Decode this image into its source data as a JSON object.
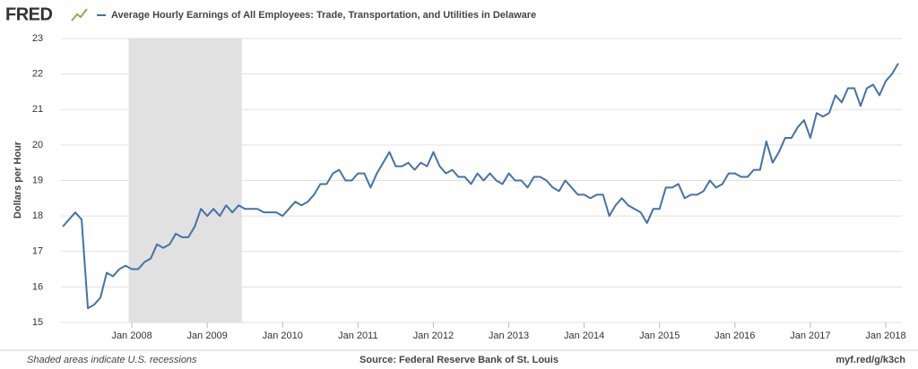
{
  "logo": "FRED",
  "chart_data": {
    "type": "line",
    "y_label": "Dollars per Hour",
    "x": [
      "2007-02",
      "2007-03",
      "2007-04",
      "2007-05",
      "2007-06",
      "2007-07",
      "2007-08",
      "2007-09",
      "2007-10",
      "2007-11",
      "2007-12",
      "2008-01",
      "2008-02",
      "2008-03",
      "2008-04",
      "2008-05",
      "2008-06",
      "2008-07",
      "2008-08",
      "2008-09",
      "2008-10",
      "2008-11",
      "2008-12",
      "2009-01",
      "2009-02",
      "2009-03",
      "2009-04",
      "2009-05",
      "2009-06",
      "2009-07",
      "2009-08",
      "2009-09",
      "2009-10",
      "2009-11",
      "2009-12",
      "2010-01",
      "2010-02",
      "2010-03",
      "2010-04",
      "2010-05",
      "2010-06",
      "2010-07",
      "2010-08",
      "2010-09",
      "2010-10",
      "2010-11",
      "2010-12",
      "2011-01",
      "2011-02",
      "2011-03",
      "2011-04",
      "2011-05",
      "2011-06",
      "2011-07",
      "2011-08",
      "2011-09",
      "2011-10",
      "2011-11",
      "2011-12",
      "2012-01",
      "2012-02",
      "2012-03",
      "2012-04",
      "2012-05",
      "2012-06",
      "2012-07",
      "2012-08",
      "2012-09",
      "2012-10",
      "2012-11",
      "2012-12",
      "2013-01",
      "2013-02",
      "2013-03",
      "2013-04",
      "2013-05",
      "2013-06",
      "2013-07",
      "2013-08",
      "2013-09",
      "2013-10",
      "2013-11",
      "2013-12",
      "2014-01",
      "2014-02",
      "2014-03",
      "2014-04",
      "2014-05",
      "2014-06",
      "2014-07",
      "2014-08",
      "2014-09",
      "2014-10",
      "2014-11",
      "2014-12",
      "2015-01",
      "2015-02",
      "2015-03",
      "2015-04",
      "2015-05",
      "2015-06",
      "2015-07",
      "2015-08",
      "2015-09",
      "2015-10",
      "2015-11",
      "2015-12",
      "2016-01",
      "2016-02",
      "2016-03",
      "2016-04",
      "2016-05",
      "2016-06",
      "2016-07",
      "2016-08",
      "2016-09",
      "2016-10",
      "2016-11",
      "2016-12",
      "2017-01",
      "2017-02",
      "2017-03",
      "2017-04",
      "2017-05",
      "2017-06",
      "2017-07",
      "2017-08",
      "2017-09",
      "2017-10",
      "2017-11",
      "2017-12",
      "2018-01",
      "2018-02",
      "2018-03"
    ],
    "series": [
      {
        "name": "Average Hourly Earnings of All Employees: Trade, Transportation, and Utilities in Delaware",
        "color": "#4572a7",
        "values": [
          17.7,
          17.9,
          18.1,
          17.9,
          15.4,
          15.5,
          15.7,
          16.4,
          16.3,
          16.5,
          16.6,
          16.5,
          16.5,
          16.7,
          16.8,
          17.2,
          17.1,
          17.2,
          17.5,
          17.4,
          17.4,
          17.7,
          18.2,
          18.0,
          18.2,
          18.0,
          18.3,
          18.1,
          18.3,
          18.2,
          18.2,
          18.2,
          18.1,
          18.1,
          18.1,
          18.0,
          18.2,
          18.4,
          18.3,
          18.4,
          18.6,
          18.9,
          18.9,
          19.2,
          19.3,
          19.0,
          19.0,
          19.2,
          19.2,
          18.8,
          19.2,
          19.5,
          19.8,
          19.4,
          19.4,
          19.5,
          19.3,
          19.5,
          19.4,
          19.8,
          19.4,
          19.2,
          19.3,
          19.1,
          19.1,
          18.9,
          19.2,
          19.0,
          19.2,
          19.0,
          18.9,
          19.2,
          19.0,
          19.0,
          18.8,
          19.1,
          19.1,
          19.0,
          18.8,
          18.7,
          19.0,
          18.8,
          18.6,
          18.6,
          18.5,
          18.6,
          18.6,
          18.0,
          18.3,
          18.5,
          18.3,
          18.2,
          18.1,
          17.8,
          18.2,
          18.2,
          18.8,
          18.8,
          18.9,
          18.5,
          18.6,
          18.6,
          18.7,
          19.0,
          18.8,
          18.9,
          19.2,
          19.2,
          19.1,
          19.1,
          19.3,
          19.3,
          20.1,
          19.5,
          19.8,
          20.2,
          20.2,
          20.5,
          20.7,
          20.2,
          20.9,
          20.8,
          20.9,
          21.4,
          21.2,
          21.6,
          21.6,
          21.1,
          21.6,
          21.7,
          21.4,
          21.8,
          22.0,
          22.3
        ]
      }
    ],
    "xlim": [
      "2007-02",
      "2018-03"
    ],
    "xticks": [
      {
        "value": "2008-01",
        "label": "Jan 2008"
      },
      {
        "value": "2009-01",
        "label": "Jan 2009"
      },
      {
        "value": "2010-01",
        "label": "Jan 2010"
      },
      {
        "value": "2011-01",
        "label": "Jan 2011"
      },
      {
        "value": "2012-01",
        "label": "Jan 2012"
      },
      {
        "value": "2013-01",
        "label": "Jan 2013"
      },
      {
        "value": "2014-01",
        "label": "Jan 2014"
      },
      {
        "value": "2015-01",
        "label": "Jan 2015"
      },
      {
        "value": "2016-01",
        "label": "Jan 2016"
      },
      {
        "value": "2017-01",
        "label": "Jan 2017"
      },
      {
        "value": "2018-01",
        "label": "Jan 2018"
      }
    ],
    "ylim": [
      15,
      23
    ],
    "yticks": [
      15,
      16,
      17,
      18,
      19,
      20,
      21,
      22,
      23
    ],
    "grid": true,
    "recessions": [
      [
        "2008-01",
        "2009-06"
      ]
    ],
    "recession_color": "#e1e1e1",
    "note": "Shaded areas indicate U.S. recessions",
    "source": "Source: Federal Reserve Bank of St. Louis",
    "url": "myf.red/g/k3ch"
  }
}
